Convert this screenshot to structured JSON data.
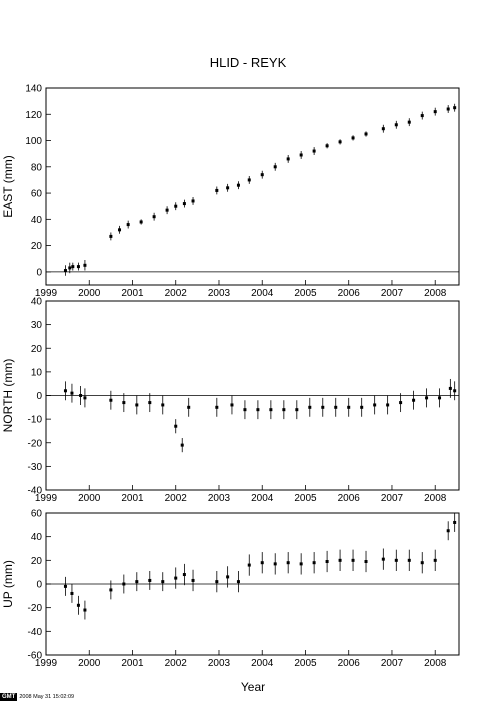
{
  "chart_data": [
    {
      "type": "scatter",
      "title": "HLID - REYK",
      "xlabel": "",
      "ylabel": "EAST (mm)",
      "xlim": [
        1999.0,
        2008.55
      ],
      "ylim": [
        -10,
        140
      ],
      "x_ticks": [
        "1999",
        "2000",
        "2001",
        "2002",
        "2003",
        "2004",
        "2005",
        "2006",
        "2007",
        "2008"
      ],
      "y_ticks": [
        "0",
        "20",
        "40",
        "60",
        "80",
        "100",
        "120",
        "140"
      ],
      "zero_line": true,
      "series": [
        {
          "points": [
            {
              "x": 1999.45,
              "y": 1,
              "err": 4
            },
            {
              "x": 1999.55,
              "y": 3,
              "err": 4
            },
            {
              "x": 1999.62,
              "y": 4,
              "err": 3
            },
            {
              "x": 1999.75,
              "y": 4,
              "err": 3
            },
            {
              "x": 1999.9,
              "y": 5,
              "err": 4
            },
            {
              "x": 2000.5,
              "y": 27,
              "err": 3
            },
            {
              "x": 2000.7,
              "y": 32,
              "err": 3
            },
            {
              "x": 2000.9,
              "y": 36,
              "err": 3
            },
            {
              "x": 2001.2,
              "y": 38,
              "err": 2
            },
            {
              "x": 2001.5,
              "y": 42,
              "err": 3
            },
            {
              "x": 2001.8,
              "y": 47,
              "err": 3
            },
            {
              "x": 2002.0,
              "y": 50,
              "err": 3
            },
            {
              "x": 2002.2,
              "y": 52,
              "err": 3
            },
            {
              "x": 2002.4,
              "y": 54,
              "err": 3
            },
            {
              "x": 2002.95,
              "y": 62,
              "err": 3
            },
            {
              "x": 2003.2,
              "y": 64,
              "err": 3
            },
            {
              "x": 2003.45,
              "y": 66,
              "err": 3
            },
            {
              "x": 2003.7,
              "y": 70,
              "err": 3
            },
            {
              "x": 2004.0,
              "y": 74,
              "err": 3
            },
            {
              "x": 2004.3,
              "y": 80,
              "err": 3
            },
            {
              "x": 2004.6,
              "y": 86,
              "err": 3
            },
            {
              "x": 2004.9,
              "y": 89,
              "err": 3
            },
            {
              "x": 2005.2,
              "y": 92,
              "err": 3
            },
            {
              "x": 2005.5,
              "y": 96,
              "err": 2
            },
            {
              "x": 2005.8,
              "y": 99,
              "err": 2
            },
            {
              "x": 2006.1,
              "y": 102,
              "err": 2
            },
            {
              "x": 2006.4,
              "y": 105,
              "err": 2
            },
            {
              "x": 2006.8,
              "y": 109,
              "err": 3
            },
            {
              "x": 2007.1,
              "y": 112,
              "err": 3
            },
            {
              "x": 2007.4,
              "y": 114,
              "err": 3
            },
            {
              "x": 2007.7,
              "y": 119,
              "err": 3
            },
            {
              "x": 2008.0,
              "y": 122,
              "err": 3
            },
            {
              "x": 2008.3,
              "y": 124,
              "err": 3
            },
            {
              "x": 2008.45,
              "y": 125,
              "err": 3
            }
          ]
        }
      ]
    },
    {
      "type": "scatter",
      "title": "",
      "xlabel": "",
      "ylabel": "NORTH (mm)",
      "xlim": [
        1999.0,
        2008.55
      ],
      "ylim": [
        -40,
        40
      ],
      "x_ticks": [
        "1999",
        "2000",
        "2001",
        "2002",
        "2003",
        "2004",
        "2005",
        "2006",
        "2007",
        "2008"
      ],
      "y_ticks": [
        "-40",
        "-30",
        "-20",
        "-10",
        "0",
        "10",
        "20",
        "30",
        "40"
      ],
      "zero_line": true,
      "series": [
        {
          "points": [
            {
              "x": 1999.45,
              "y": 2,
              "err": 4
            },
            {
              "x": 1999.6,
              "y": 1,
              "err": 4
            },
            {
              "x": 1999.8,
              "y": 0,
              "err": 4
            },
            {
              "x": 1999.9,
              "y": -1,
              "err": 4
            },
            {
              "x": 2000.5,
              "y": -2,
              "err": 4
            },
            {
              "x": 2000.8,
              "y": -3,
              "err": 4
            },
            {
              "x": 2001.1,
              "y": -4,
              "err": 4
            },
            {
              "x": 2001.4,
              "y": -3,
              "err": 4
            },
            {
              "x": 2001.7,
              "y": -4,
              "err": 4
            },
            {
              "x": 2002.0,
              "y": -13,
              "err": 3
            },
            {
              "x": 2002.15,
              "y": -21,
              "err": 3
            },
            {
              "x": 2002.3,
              "y": -5,
              "err": 4
            },
            {
              "x": 2002.95,
              "y": -5,
              "err": 4
            },
            {
              "x": 2003.3,
              "y": -4,
              "err": 4
            },
            {
              "x": 2003.6,
              "y": -6,
              "err": 4
            },
            {
              "x": 2003.9,
              "y": -6,
              "err": 4
            },
            {
              "x": 2004.2,
              "y": -6,
              "err": 4
            },
            {
              "x": 2004.5,
              "y": -6,
              "err": 4
            },
            {
              "x": 2004.8,
              "y": -6,
              "err": 4
            },
            {
              "x": 2005.1,
              "y": -5,
              "err": 4
            },
            {
              "x": 2005.4,
              "y": -5,
              "err": 4
            },
            {
              "x": 2005.7,
              "y": -5,
              "err": 4
            },
            {
              "x": 2006.0,
              "y": -5,
              "err": 4
            },
            {
              "x": 2006.3,
              "y": -5,
              "err": 4
            },
            {
              "x": 2006.6,
              "y": -4,
              "err": 4
            },
            {
              "x": 2006.9,
              "y": -4,
              "err": 4
            },
            {
              "x": 2007.2,
              "y": -3,
              "err": 4
            },
            {
              "x": 2007.5,
              "y": -2,
              "err": 4
            },
            {
              "x": 2007.8,
              "y": -1,
              "err": 4
            },
            {
              "x": 2008.1,
              "y": -1,
              "err": 4
            },
            {
              "x": 2008.35,
              "y": 3,
              "err": 4
            },
            {
              "x": 2008.45,
              "y": 2,
              "err": 4
            }
          ]
        }
      ]
    },
    {
      "type": "scatter",
      "title": "",
      "xlabel": "Year",
      "ylabel": "UP (mm)",
      "xlim": [
        1999.0,
        2008.55
      ],
      "ylim": [
        -60,
        60
      ],
      "x_ticks": [
        "1999",
        "2000",
        "2001",
        "2002",
        "2003",
        "2004",
        "2005",
        "2006",
        "2007",
        "2008"
      ],
      "y_ticks": [
        "-60",
        "-40",
        "-20",
        "0",
        "20",
        "40",
        "60"
      ],
      "zero_line": true,
      "series": [
        {
          "points": [
            {
              "x": 1999.45,
              "y": -2,
              "err": 8
            },
            {
              "x": 1999.6,
              "y": -8,
              "err": 8
            },
            {
              "x": 1999.75,
              "y": -18,
              "err": 8
            },
            {
              "x": 1999.9,
              "y": -22,
              "err": 8
            },
            {
              "x": 2000.5,
              "y": -5,
              "err": 8
            },
            {
              "x": 2000.8,
              "y": 0,
              "err": 8
            },
            {
              "x": 2001.1,
              "y": 2,
              "err": 8
            },
            {
              "x": 2001.4,
              "y": 3,
              "err": 8
            },
            {
              "x": 2001.7,
              "y": 2,
              "err": 8
            },
            {
              "x": 2002.0,
              "y": 5,
              "err": 9
            },
            {
              "x": 2002.2,
              "y": 8,
              "err": 9
            },
            {
              "x": 2002.4,
              "y": 3,
              "err": 9
            },
            {
              "x": 2002.95,
              "y": 2,
              "err": 9
            },
            {
              "x": 2003.2,
              "y": 6,
              "err": 9
            },
            {
              "x": 2003.45,
              "y": 2,
              "err": 9
            },
            {
              "x": 2003.7,
              "y": 16,
              "err": 9
            },
            {
              "x": 2004.0,
              "y": 18,
              "err": 9
            },
            {
              "x": 2004.3,
              "y": 17,
              "err": 9
            },
            {
              "x": 2004.6,
              "y": 18,
              "err": 9
            },
            {
              "x": 2004.9,
              "y": 17,
              "err": 9
            },
            {
              "x": 2005.2,
              "y": 18,
              "err": 9
            },
            {
              "x": 2005.5,
              "y": 19,
              "err": 9
            },
            {
              "x": 2005.8,
              "y": 20,
              "err": 9
            },
            {
              "x": 2006.1,
              "y": 20,
              "err": 9
            },
            {
              "x": 2006.4,
              "y": 19,
              "err": 9
            },
            {
              "x": 2006.8,
              "y": 21,
              "err": 9
            },
            {
              "x": 2007.1,
              "y": 20,
              "err": 9
            },
            {
              "x": 2007.4,
              "y": 20,
              "err": 9
            },
            {
              "x": 2007.7,
              "y": 18,
              "err": 9
            },
            {
              "x": 2008.0,
              "y": 20,
              "err": 9
            },
            {
              "x": 2008.3,
              "y": 45,
              "err": 8
            },
            {
              "x": 2008.45,
              "y": 52,
              "err": 8
            }
          ]
        }
      ]
    }
  ],
  "footer": {
    "logo": "GMT",
    "timestamp": "2008 May 31 15:02:09"
  }
}
